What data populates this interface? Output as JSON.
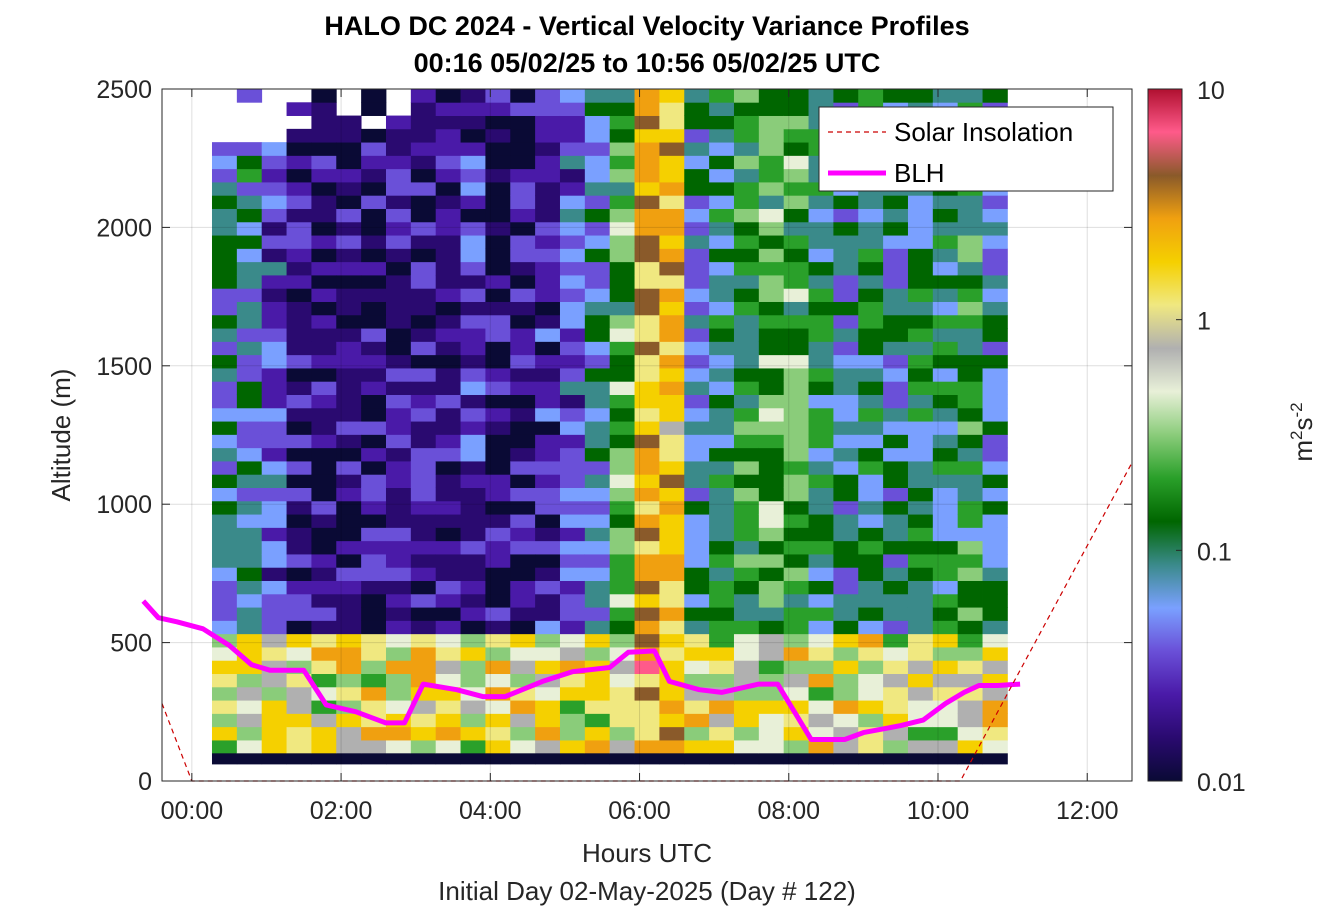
{
  "chart_data": {
    "type": "heatmap",
    "title_line1": "HALO DC 2024 - Vertical Velocity Variance Profiles",
    "title_line2": "00:16 05/02/25 to 10:56 05/02/25  UTC",
    "xlabel": "Hours UTC",
    "xlabel2": "Initial Day 02-May-2025 (Day # 122)",
    "ylabel": "Altitude (m)",
    "xlim": [
      -0.4,
      12.6
    ],
    "ylim": [
      0,
      2500
    ],
    "x_ticks": [
      0,
      2,
      4,
      6,
      8,
      10,
      12
    ],
    "x_tick_labels": [
      "00:00",
      "02:00",
      "04:00",
      "06:00",
      "08:00",
      "10:00",
      "12:00"
    ],
    "y_ticks": [
      0,
      500,
      1000,
      1500,
      2000,
      2500
    ],
    "y_tick_labels": [
      "0",
      "500",
      "1000",
      "1500",
      "2000",
      "2500"
    ],
    "grid": true,
    "colorbar": {
      "scale": "log",
      "range": [
        0.01,
        10
      ],
      "tick_labels": [
        "0.01",
        "0.1",
        "1",
        "10"
      ],
      "units_base": "m",
      "units_sup1": "2",
      "units_mid": "s",
      "units_sup2": "-2",
      "stops": [
        "#0a0a35",
        "#2a0a70",
        "#4a1aa8",
        "#6a50d8",
        "#7aa0ff",
        "#3a8a8a",
        "#006600",
        "#2aa02a",
        "#8acc7a",
        "#e8f0d8",
        "#b0b0b0",
        "#f0e880",
        "#f5d000",
        "#f0a010",
        "#8a5a2a",
        "#ff5a8a",
        "#b01030"
      ]
    },
    "heatmap": {
      "time_start": 0.27,
      "time_end": 10.93,
      "altitude_top": 2500,
      "altitude_bottom": 100,
      "columns": 32,
      "rows": 50,
      "profile_note_clear_boundary_layer_color": "#0a0a35"
    },
    "legend": {
      "position": "top-right",
      "entries": [
        {
          "label": "Solar Insolation",
          "color": "#cc0000",
          "style": "dashed"
        },
        {
          "label": "BLH",
          "color": "#ff00ff",
          "style": "solid"
        }
      ]
    },
    "series": [
      {
        "name": "BLH",
        "color": "#ff00ff",
        "x": [
          -0.65,
          -0.45,
          -0.2,
          0.15,
          0.5,
          0.8,
          1.05,
          1.5,
          1.8,
          2.2,
          2.6,
          2.85,
          3.1,
          3.55,
          3.9,
          4.2,
          4.7,
          5.1,
          5.6,
          5.85,
          6.2,
          6.4,
          6.8,
          7.1,
          7.6,
          7.85,
          8.3,
          8.55,
          8.75,
          9.0,
          9.5,
          9.8,
          10.1,
          10.35,
          10.55,
          10.8,
          11.1
        ],
        "y": [
          650,
          590,
          575,
          550,
          490,
          420,
          400,
          400,
          275,
          250,
          210,
          210,
          350,
          330,
          305,
          305,
          360,
          395,
          410,
          465,
          470,
          360,
          330,
          320,
          350,
          350,
          150,
          150,
          150,
          175,
          200,
          220,
          280,
          320,
          345,
          345,
          350
        ]
      },
      {
        "name": "Solar Insolation",
        "color": "#cc0000",
        "x": [
          -0.4,
          0.0,
          10.3,
          12.6
        ],
        "y": [
          280,
          0,
          0,
          1150
        ]
      }
    ]
  }
}
